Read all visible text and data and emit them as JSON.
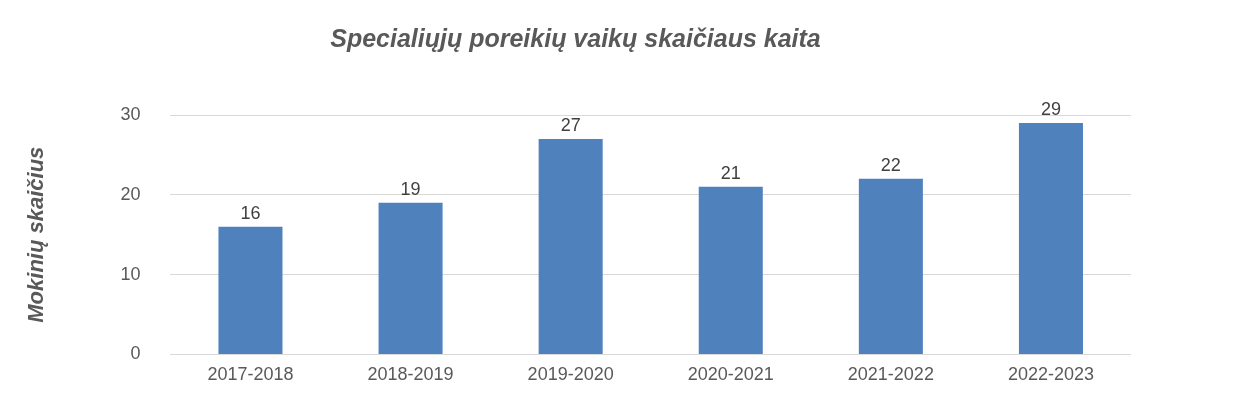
{
  "chart_data": {
    "type": "bar",
    "title": "Specialiųjų poreikių vaikų skaičiaus kaita",
    "ylabel": "Mokinių skaičius",
    "categories": [
      "2017-2018",
      "2018-2019",
      "2019-2020",
      "2020-2021",
      "2021-2022",
      "2022-2023"
    ],
    "values": [
      16,
      19,
      27,
      21,
      22,
      29
    ],
    "color": "#4f81bd",
    "ylim": [
      0,
      30
    ],
    "yticks": [
      0,
      10,
      20,
      30
    ],
    "grid": "y",
    "data_labels": true
  }
}
